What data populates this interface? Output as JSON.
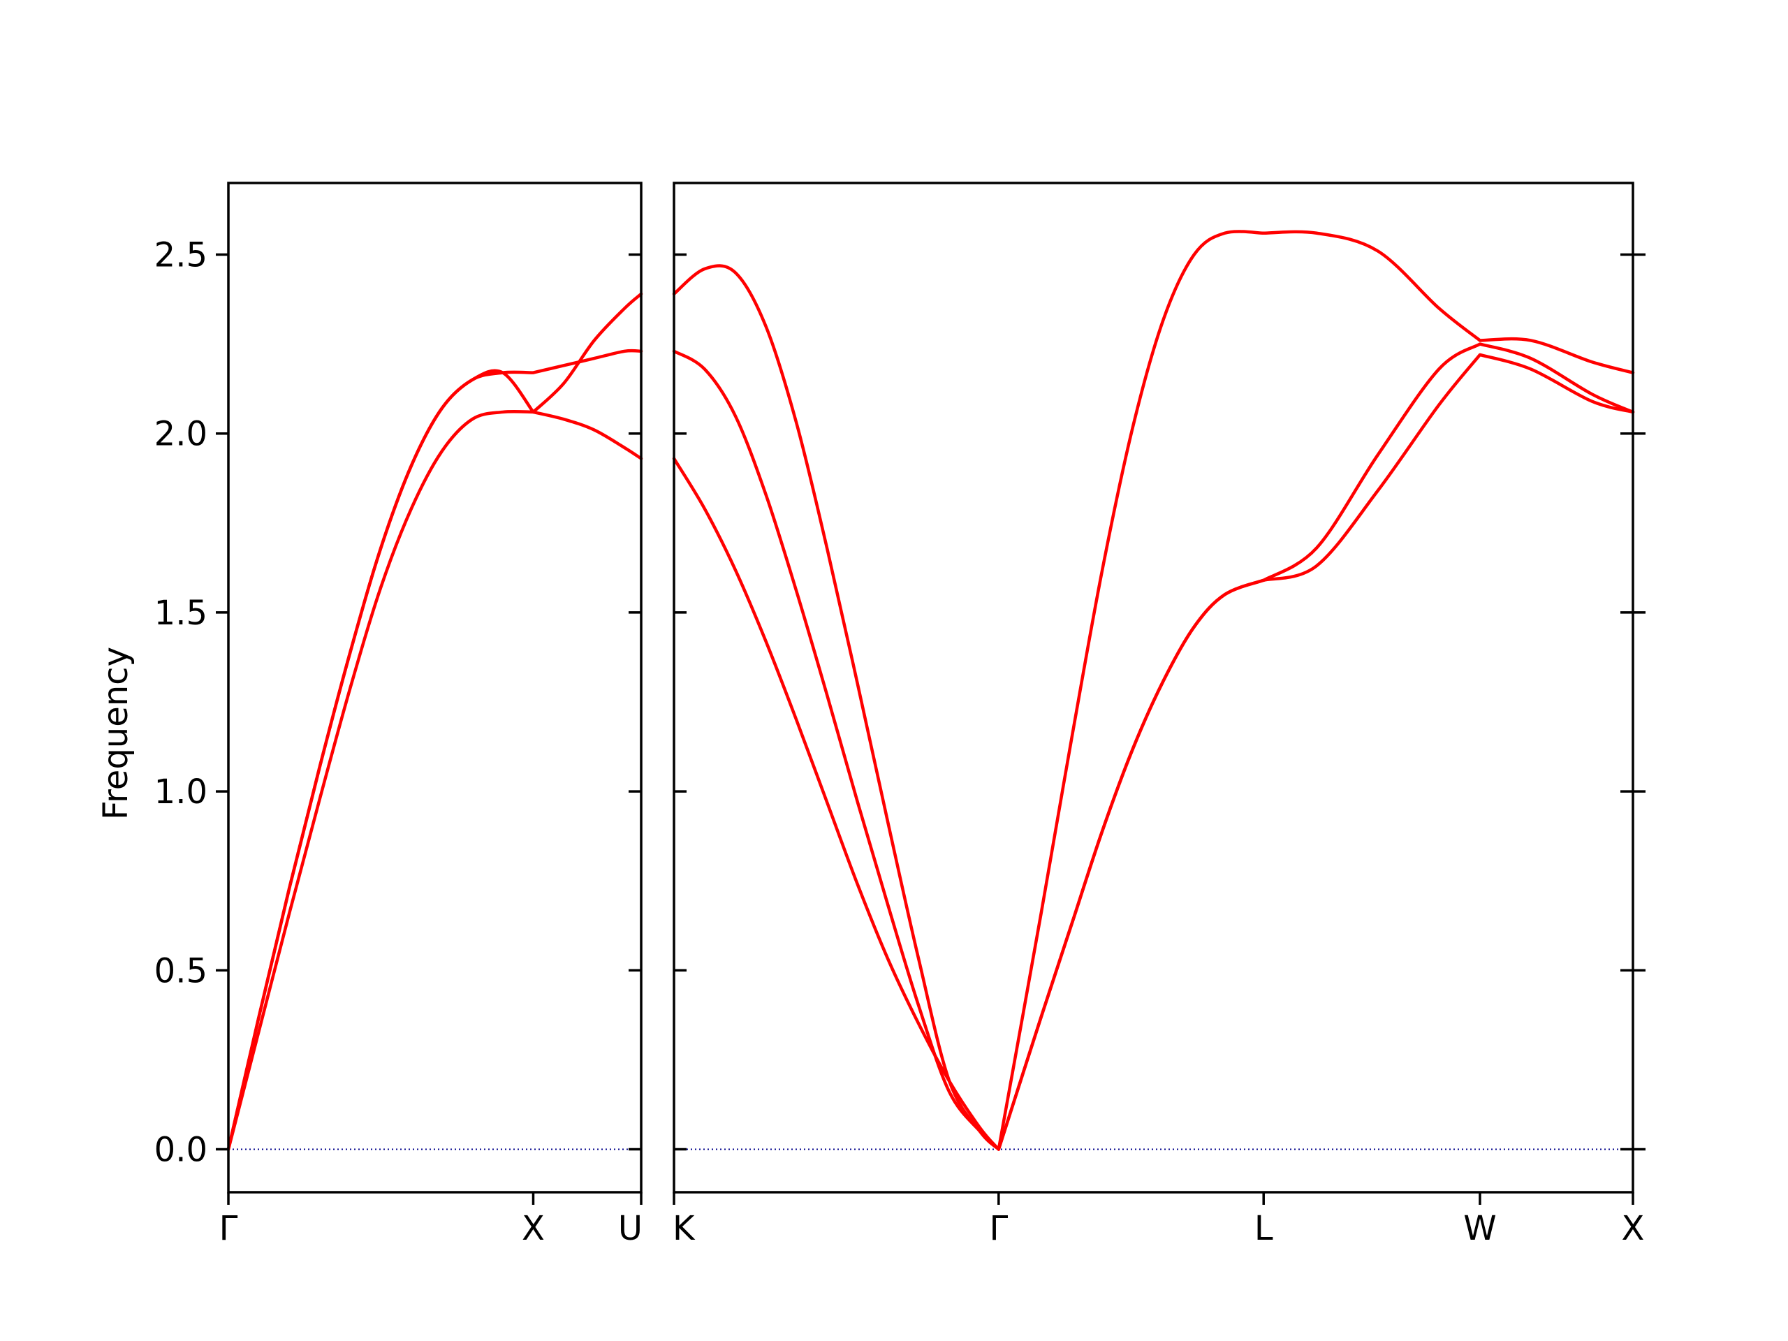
{
  "chart_data": {
    "type": "line",
    "title": "",
    "ylabel": "Frequency",
    "xlabel": "",
    "ylim": [
      -0.12,
      2.7
    ],
    "yticks": [
      "0.0",
      "0.5",
      "1.0",
      "1.5",
      "2.0",
      "2.5"
    ],
    "ytick_values": [
      0.0,
      0.5,
      1.0,
      1.5,
      2.0,
      2.5
    ],
    "grid": false,
    "band_color": "#ff0000",
    "zero_line_color": "#00008b",
    "panels": [
      {
        "path": [
          "Γ",
          "X",
          "U"
        ],
        "x_ticks": [
          0.0,
          1.0,
          1.354
        ],
        "series": [
          {
            "x": [
              0,
              0.1,
              0.2,
              0.3,
              0.4,
              0.5,
              0.6,
              0.7,
              0.8,
              0.9,
              1.0,
              1.1,
              1.2,
              1.3,
              1.354
            ],
            "values": [
              0,
              0.33,
              0.66,
              0.98,
              1.29,
              1.57,
              1.79,
              1.95,
              2.04,
              2.06,
              2.06,
              2.04,
              2.01,
              1.96,
              1.93
            ]
          },
          {
            "x": [
              0,
              0.1,
              0.2,
              0.3,
              0.4,
              0.5,
              0.6,
              0.7,
              0.8,
              0.9,
              1.0,
              1.1,
              1.2,
              1.3,
              1.354
            ],
            "values": [
              0,
              0.37,
              0.73,
              1.07,
              1.39,
              1.68,
              1.91,
              2.07,
              2.15,
              2.17,
              2.06,
              2.14,
              2.26,
              2.35,
              2.39
            ]
          },
          {
            "x": [
              0,
              0.1,
              0.2,
              0.3,
              0.4,
              0.5,
              0.6,
              0.7,
              0.8,
              0.9,
              1.0,
              1.1,
              1.2,
              1.3,
              1.354
            ],
            "values": [
              0,
              0.37,
              0.73,
              1.07,
              1.39,
              1.68,
              1.91,
              2.07,
              2.15,
              2.17,
              2.17,
              2.19,
              2.21,
              2.23,
              2.23
            ]
          }
        ]
      },
      {
        "path": [
          "K",
          "Γ",
          "L",
          "W",
          "X"
        ],
        "x_ticks": [
          0.0,
          1.061,
          1.927,
          2.634,
          3.134
        ],
        "series": [
          {
            "x": [
              0,
              0.1,
              0.2,
              0.3,
              0.4,
              0.5,
              0.6,
              0.7,
              0.8,
              0.9,
              1.0,
              1.061,
              1.2,
              1.3,
              1.4,
              1.5,
              1.6,
              1.7,
              1.8,
              1.927,
              2.1,
              2.3,
              2.5,
              2.634,
              2.8,
              3.0,
              3.134
            ],
            "values": [
              1.93,
              1.79,
              1.62,
              1.42,
              1.2,
              0.97,
              0.74,
              0.53,
              0.35,
              0.19,
              0.06,
              0,
              0.37,
              0.63,
              0.89,
              1.12,
              1.31,
              1.46,
              1.55,
              1.59,
              1.63,
              1.84,
              2.08,
              2.22,
              2.18,
              2.09,
              2.06
            ]
          },
          {
            "x": [
              0,
              0.1,
              0.2,
              0.3,
              0.4,
              0.5,
              0.6,
              0.7,
              0.8,
              0.9,
              1.0,
              1.061,
              1.2,
              1.3,
              1.4,
              1.5,
              1.6,
              1.7,
              1.8,
              1.927,
              2.1,
              2.3,
              2.5,
              2.634,
              2.8,
              3.0,
              3.134
            ],
            "values": [
              2.23,
              2.18,
              2.05,
              1.83,
              1.56,
              1.27,
              0.97,
              0.68,
              0.4,
              0.16,
              0.05,
              0,
              0.37,
              0.63,
              0.89,
              1.12,
              1.31,
              1.46,
              1.55,
              1.59,
              1.68,
              1.94,
              2.18,
              2.25,
              2.21,
              2.11,
              2.06
            ]
          },
          {
            "x": [
              0,
              0.1,
              0.2,
              0.3,
              0.4,
              0.5,
              0.6,
              0.7,
              0.8,
              0.9,
              1.0,
              1.061,
              1.2,
              1.3,
              1.4,
              1.5,
              1.6,
              1.7,
              1.8,
              1.927,
              2.1,
              2.3,
              2.5,
              2.634,
              2.8,
              3.0,
              3.134
            ],
            "values": [
              2.39,
              2.46,
              2.45,
              2.3,
              2.03,
              1.68,
              1.3,
              0.91,
              0.53,
              0.19,
              0.05,
              0,
              0.66,
              1.15,
              1.62,
              2.02,
              2.32,
              2.5,
              2.56,
              2.56,
              2.56,
              2.51,
              2.35,
              2.26,
              2.26,
              2.2,
              2.17
            ]
          }
        ]
      }
    ]
  }
}
